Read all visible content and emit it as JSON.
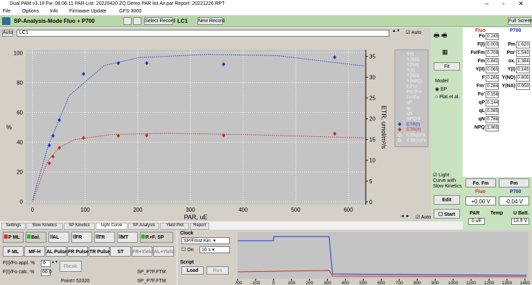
{
  "title_bar": {
    "text": "Dual PAM v3.19  Fw: 08.06.11    PAR-List: 20220420 ZQ Demo PAR list Air.par    Report: 20221226.RPT"
  },
  "menu": [
    "File",
    "Options",
    "Info",
    "Firmware Update",
    "GFS-3000"
  ],
  "toolbar": {
    "mode": "SP-Analysis-Mode  Fluo + P700",
    "select_record": "Select Record",
    "record": "LC1",
    "new_record": "New Record",
    "full_screen": "Full Screen"
  },
  "record_bar": {
    "auto_left": "Auto",
    "name": "LC1",
    "auto_right": "Auto"
  },
  "chart_data": {
    "type": "scatter",
    "x_label": "PAR, uE",
    "y_label": "%",
    "y2_label": "ETR, umol/m²/s",
    "xlim": [
      -13,
      633
    ],
    "xticks": [
      0,
      100,
      200,
      300,
      400,
      500,
      600
    ],
    "ylim": [
      -2,
      102
    ],
    "yticks": [
      0,
      20,
      40,
      60,
      80,
      100
    ],
    "y2lim": [
      -0.7,
      36.6
    ],
    "y2ticks": [
      0,
      5,
      10,
      15,
      20,
      25,
      30,
      35
    ],
    "grid": true,
    "legend_inactive": [
      "Y(I)",
      "Y(ND)",
      "Y(NA)",
      "Y(II)",
      "Y(NO)",
      "Y(NPQ)",
      "F/Fm",
      "Fm'/Fm",
      "Fo'/Fo",
      "qP",
      "qL",
      "qN",
      "NPQ/4"
    ],
    "series": [
      {
        "name": "ETR(I)",
        "color": "#1e3cc8",
        "axis": "y2",
        "marker": "diamond",
        "x": [
          32,
          39,
          51,
          97,
          163,
          217,
          363,
          574
        ],
        "values": [
          13.6,
          15.9,
          19.7,
          30.8,
          33.4,
          33.4,
          33.1,
          34.8
        ]
      },
      {
        "name": "ETR(II)",
        "color": "#c0302a",
        "axis": "y2",
        "marker": "diamond",
        "x": [
          32,
          39,
          51,
          97,
          163,
          217,
          363,
          574
        ],
        "values": [
          9.3,
          10.9,
          13.0,
          15.4,
          15.9,
          16.0,
          16.0,
          16.4
        ]
      },
      {
        "name": "ETR(I)Fit",
        "color": "#1e3cc8",
        "axis": "y2",
        "linestyle": "dotted",
        "x": [
          0,
          30,
          70,
          136,
          201,
          333,
          465,
          630
        ],
        "values": [
          0.5,
          13.5,
          25.6,
          32.8,
          34.7,
          35.5,
          35.2,
          32.7
        ]
      },
      {
        "name": "ETR(II)Fit",
        "color": "#c0302a",
        "axis": "y2",
        "linestyle": "dotted",
        "x": [
          0,
          17,
          30,
          50,
          80,
          150,
          250,
          400,
          630
        ],
        "values": [
          0,
          6,
          10,
          13,
          15,
          16.2,
          16.5,
          16.2,
          15.4
        ]
      }
    ]
  },
  "chart_controls": {
    "auto": "Auto"
  },
  "side_panel": {
    "fit": "Fit",
    "model": "Model",
    "ep": "EP",
    "plat": "Plat et al.",
    "light_curve": "Light Curve with Slow Kinetics",
    "edit": "Edit",
    "start": "Start"
  },
  "fluo": {
    "header": "Fluo",
    "rows": [
      [
        "Fo",
        "0.245"
      ],
      [
        "F(I)",
        "0.000"
      ],
      [
        "Fv/Fm",
        "0.708"
      ],
      [
        "Fm",
        "0.841"
      ],
      [
        "Y(II)",
        "0.065"
      ],
      [
        "F",
        "0.265"
      ],
      [
        "Fm'",
        "0.284"
      ],
      [
        "Fo'",
        "0.156"
      ],
      [
        "qP",
        "0.144"
      ],
      [
        "qL",
        "0.085"
      ],
      [
        "qN",
        "0.786"
      ],
      [
        "NPQ",
        "1.965"
      ]
    ]
  },
  "p700": {
    "header": "P700",
    "rows": [
      [
        "Pm",
        "1.620"
      ],
      [
        "Pm'",
        "1.540"
      ],
      [
        "ox.",
        "1.384"
      ],
      [
        "Y(I)",
        "0.145"
      ],
      [
        "Y(ND)",
        "0.805"
      ],
      [
        "Y(NA)",
        "0.050"
      ]
    ]
  },
  "buttons": {
    "fo_fm": "Fo. Fm",
    "pm": "Pm"
  },
  "signals": {
    "fluo_label": "Fluo",
    "fluo_value": "+0.00 V",
    "p700_label": "P700",
    "p700_value": "-0.04 V",
    "par": "PAR",
    "temp": "Temp",
    "u_batt": "U Batt.",
    "par_value": "0 uE",
    "u_batt_value": "13.9 V"
  },
  "tabs": [
    "Settings",
    "Slow Kinetics",
    "SP Kinetics",
    "Light Curve",
    "SP-Analysis",
    "Yield Plot",
    "Report"
  ],
  "controls": {
    "row1": [
      "P ML",
      "Bal.",
      "AL",
      "FR",
      "TR",
      "MT",
      "P.+F. SP"
    ],
    "row2": [
      "F ML",
      "MF-H",
      "AL Pulse",
      "FR Pulse",
      "TR Pulse",
      "ST",
      "FR+Yield",
      "AL+Yield"
    ],
    "fi_appl": "F(I)/Fo appl. %",
    "fi_appl_value": "0",
    "fi_calc": "F(I)/Fo calc. %",
    "fi_calc_value": "00.0",
    "fbcalc": "Fbcalc",
    "file1": "SP_P7F.FTM",
    "point": "Point= 52320",
    "file2": "SP_P7F.FTM"
  },
  "clock": {
    "title": "Clock",
    "mode": "SP/Fmst Kin.",
    "on": "On",
    "interval": "10 s"
  },
  "script": {
    "title": "Script",
    "load": "Load",
    "run": "Run"
  },
  "trace": {
    "xlim": [
      -200,
      1420
    ],
    "xticks": [
      -200,
      -100,
      0,
      100,
      200,
      300,
      400,
      500,
      600,
      700,
      800,
      900,
      1000,
      1100,
      1200,
      1300,
      1400
    ]
  }
}
